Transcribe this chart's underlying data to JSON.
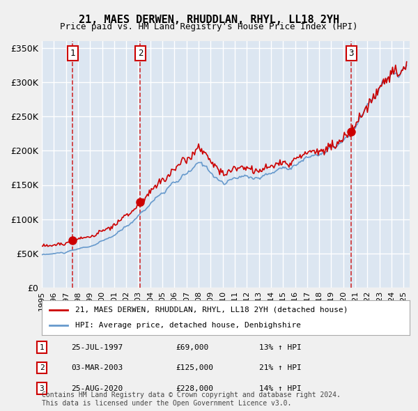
{
  "title": "21, MAES DERWEN, RHUDDLAN, RHYL, LL18 2YH",
  "subtitle": "Price paid vs. HM Land Registry's House Price Index (HPI)",
  "ylabel": "",
  "ylim": [
    0,
    360000
  ],
  "yticks": [
    0,
    50000,
    100000,
    150000,
    200000,
    250000,
    300000,
    350000
  ],
  "ytick_labels": [
    "£0",
    "£50K",
    "£100K",
    "£150K",
    "£200K",
    "£250K",
    "£300K",
    "£350K"
  ],
  "xlim_start": 1995.0,
  "xlim_end": 2025.5,
  "xticks": [
    1995,
    1996,
    1997,
    1998,
    1999,
    2000,
    2001,
    2002,
    2003,
    2004,
    2005,
    2006,
    2007,
    2008,
    2009,
    2010,
    2011,
    2012,
    2013,
    2014,
    2015,
    2016,
    2017,
    2018,
    2019,
    2020,
    2021,
    2022,
    2023,
    2024,
    2025
  ],
  "sale_color": "#cc0000",
  "hpi_color": "#6699cc",
  "background_color": "#dce6f1",
  "plot_bg_color": "#ffffff",
  "grid_color": "#ffffff",
  "sale_marker_color": "#cc0000",
  "sale_dates": [
    1997.57,
    2003.17,
    2020.65
  ],
  "sale_prices": [
    69000,
    125000,
    228000
  ],
  "sale_labels": [
    "1",
    "2",
    "3"
  ],
  "vline_color": "#cc0000",
  "legend_label_sale": "21, MAES DERWEN, RHUDDLAN, RHYL, LL18 2YH (detached house)",
  "legend_label_hpi": "HPI: Average price, detached house, Denbighshire",
  "table_rows": [
    [
      "1",
      "25-JUL-1997",
      "£69,000",
      "13% ↑ HPI"
    ],
    [
      "2",
      "03-MAR-2003",
      "£125,000",
      "21% ↑ HPI"
    ],
    [
      "3",
      "25-AUG-2020",
      "£228,000",
      "14% ↑ HPI"
    ]
  ],
  "footnote": "Contains HM Land Registry data © Crown copyright and database right 2024.\nThis data is licensed under the Open Government Licence v3.0."
}
